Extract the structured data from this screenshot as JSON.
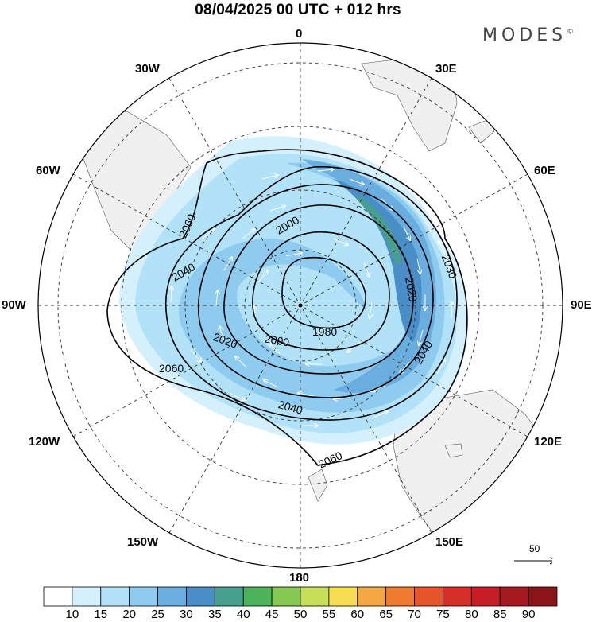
{
  "title": "08/04/2025  00 UTC  + 012 hrs",
  "brand": "MODES",
  "brand_mark": "©",
  "map": {
    "projection": "polar-stereographic-south",
    "longitude_labels": {
      "top": "0",
      "upper_left": "30W",
      "upper_right": "30E",
      "left_upper": "60W",
      "right_upper": "60E",
      "left": "90W",
      "right": "90E",
      "left_lower": "120W",
      "right_lower": "120E",
      "lower_left": "150W",
      "lower_right": "150E",
      "bottom": "180"
    },
    "contour_labels": [
      "1980",
      "2000",
      "2000",
      "2020",
      "2020",
      "2030",
      "2040",
      "2040",
      "2040",
      "2060",
      "2060",
      "2060"
    ],
    "land_color": "#f0f0f0",
    "contour_color": "#000000",
    "wind_arrow_color": "#ffffff"
  },
  "reference_vector": {
    "value": "50"
  },
  "colorbar": {
    "ticks": [
      "10",
      "15",
      "20",
      "25",
      "30",
      "35",
      "40",
      "45",
      "50",
      "55",
      "60",
      "65",
      "70",
      "75",
      "80",
      "85",
      "90"
    ],
    "colors": [
      "#ffffff",
      "#d4f0fc",
      "#b2e2f7",
      "#8fcbef",
      "#6aaee0",
      "#4a8ec8",
      "#47a08e",
      "#4cb35a",
      "#86c952",
      "#c7de58",
      "#f6dd55",
      "#f4a843",
      "#ef7b30",
      "#e4552a",
      "#d63129",
      "#c41f27",
      "#a61a1f",
      "#8a1519"
    ]
  }
}
